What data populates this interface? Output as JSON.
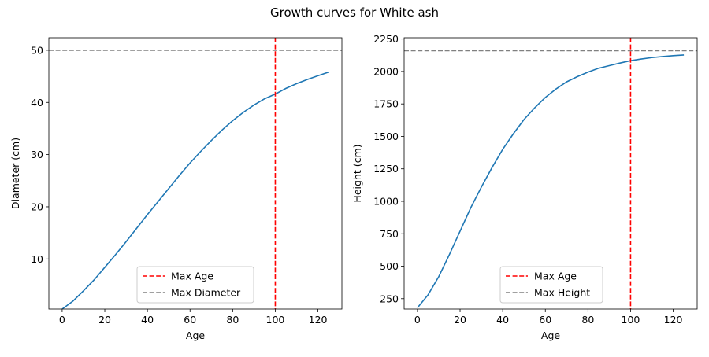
{
  "figure": {
    "title": "Growth curves for White ash"
  },
  "chart_data": [
    {
      "type": "line",
      "xlabel": "Age",
      "ylabel": "Diameter (cm)",
      "xlim": [
        -6.25,
        131.25
      ],
      "ylim": [
        0.4,
        52.4
      ],
      "xticks": [
        0,
        20,
        40,
        60,
        80,
        100,
        120
      ],
      "yticks": [
        10,
        20,
        30,
        40,
        50
      ],
      "series": [
        {
          "name": "",
          "color": "#1f77b4",
          "style": "solid",
          "x": [
            0,
            5,
            10,
            15,
            20,
            25,
            30,
            35,
            40,
            45,
            50,
            55,
            60,
            65,
            70,
            75,
            80,
            85,
            90,
            95,
            100,
            105,
            110,
            115,
            120,
            125
          ],
          "y": [
            0.4,
            1.9,
            3.9,
            6.0,
            8.4,
            10.8,
            13.3,
            15.9,
            18.5,
            21.0,
            23.5,
            26.0,
            28.4,
            30.6,
            32.7,
            34.7,
            36.5,
            38.1,
            39.5,
            40.7,
            41.6,
            42.7,
            43.6,
            44.4,
            45.1,
            45.8
          ]
        }
      ],
      "reference_lines": [
        {
          "name": "Max Age",
          "orientation": "vertical",
          "value": 100,
          "color": "#ff0000",
          "style": "dashed"
        },
        {
          "name": "Max Diameter",
          "orientation": "horizontal",
          "value": 50,
          "color": "#808080",
          "style": "dashed"
        }
      ],
      "legend": {
        "placement": "lower-center",
        "entries": [
          "Max Age",
          "Max Diameter"
        ]
      }
    },
    {
      "type": "line",
      "xlabel": "Age",
      "ylabel": "Height (cm)",
      "xlim": [
        -6.25,
        131.25
      ],
      "ylim": [
        170,
        2260
      ],
      "xticks": [
        0,
        20,
        40,
        60,
        80,
        100,
        120
      ],
      "yticks": [
        250,
        500,
        750,
        1000,
        1250,
        1500,
        1750,
        2000,
        2250
      ],
      "series": [
        {
          "name": "",
          "color": "#1f77b4",
          "style": "solid",
          "x": [
            0,
            5,
            10,
            15,
            20,
            25,
            30,
            35,
            40,
            45,
            50,
            55,
            60,
            65,
            70,
            75,
            80,
            85,
            90,
            95,
            100,
            105,
            110,
            115,
            120,
            125
          ],
          "y": [
            180,
            280,
            420,
            590,
            770,
            950,
            1110,
            1260,
            1400,
            1520,
            1630,
            1720,
            1800,
            1865,
            1920,
            1960,
            1995,
            2025,
            2045,
            2065,
            2083,
            2096,
            2107,
            2115,
            2122,
            2127
          ]
        }
      ],
      "reference_lines": [
        {
          "name": "Max Age",
          "orientation": "vertical",
          "value": 100,
          "color": "#ff0000",
          "style": "dashed"
        },
        {
          "name": "Max Height",
          "orientation": "horizontal",
          "value": 2160,
          "color": "#808080",
          "style": "dashed"
        }
      ],
      "legend": {
        "placement": "lower-center",
        "entries": [
          "Max Age",
          "Max Height"
        ]
      }
    }
  ]
}
